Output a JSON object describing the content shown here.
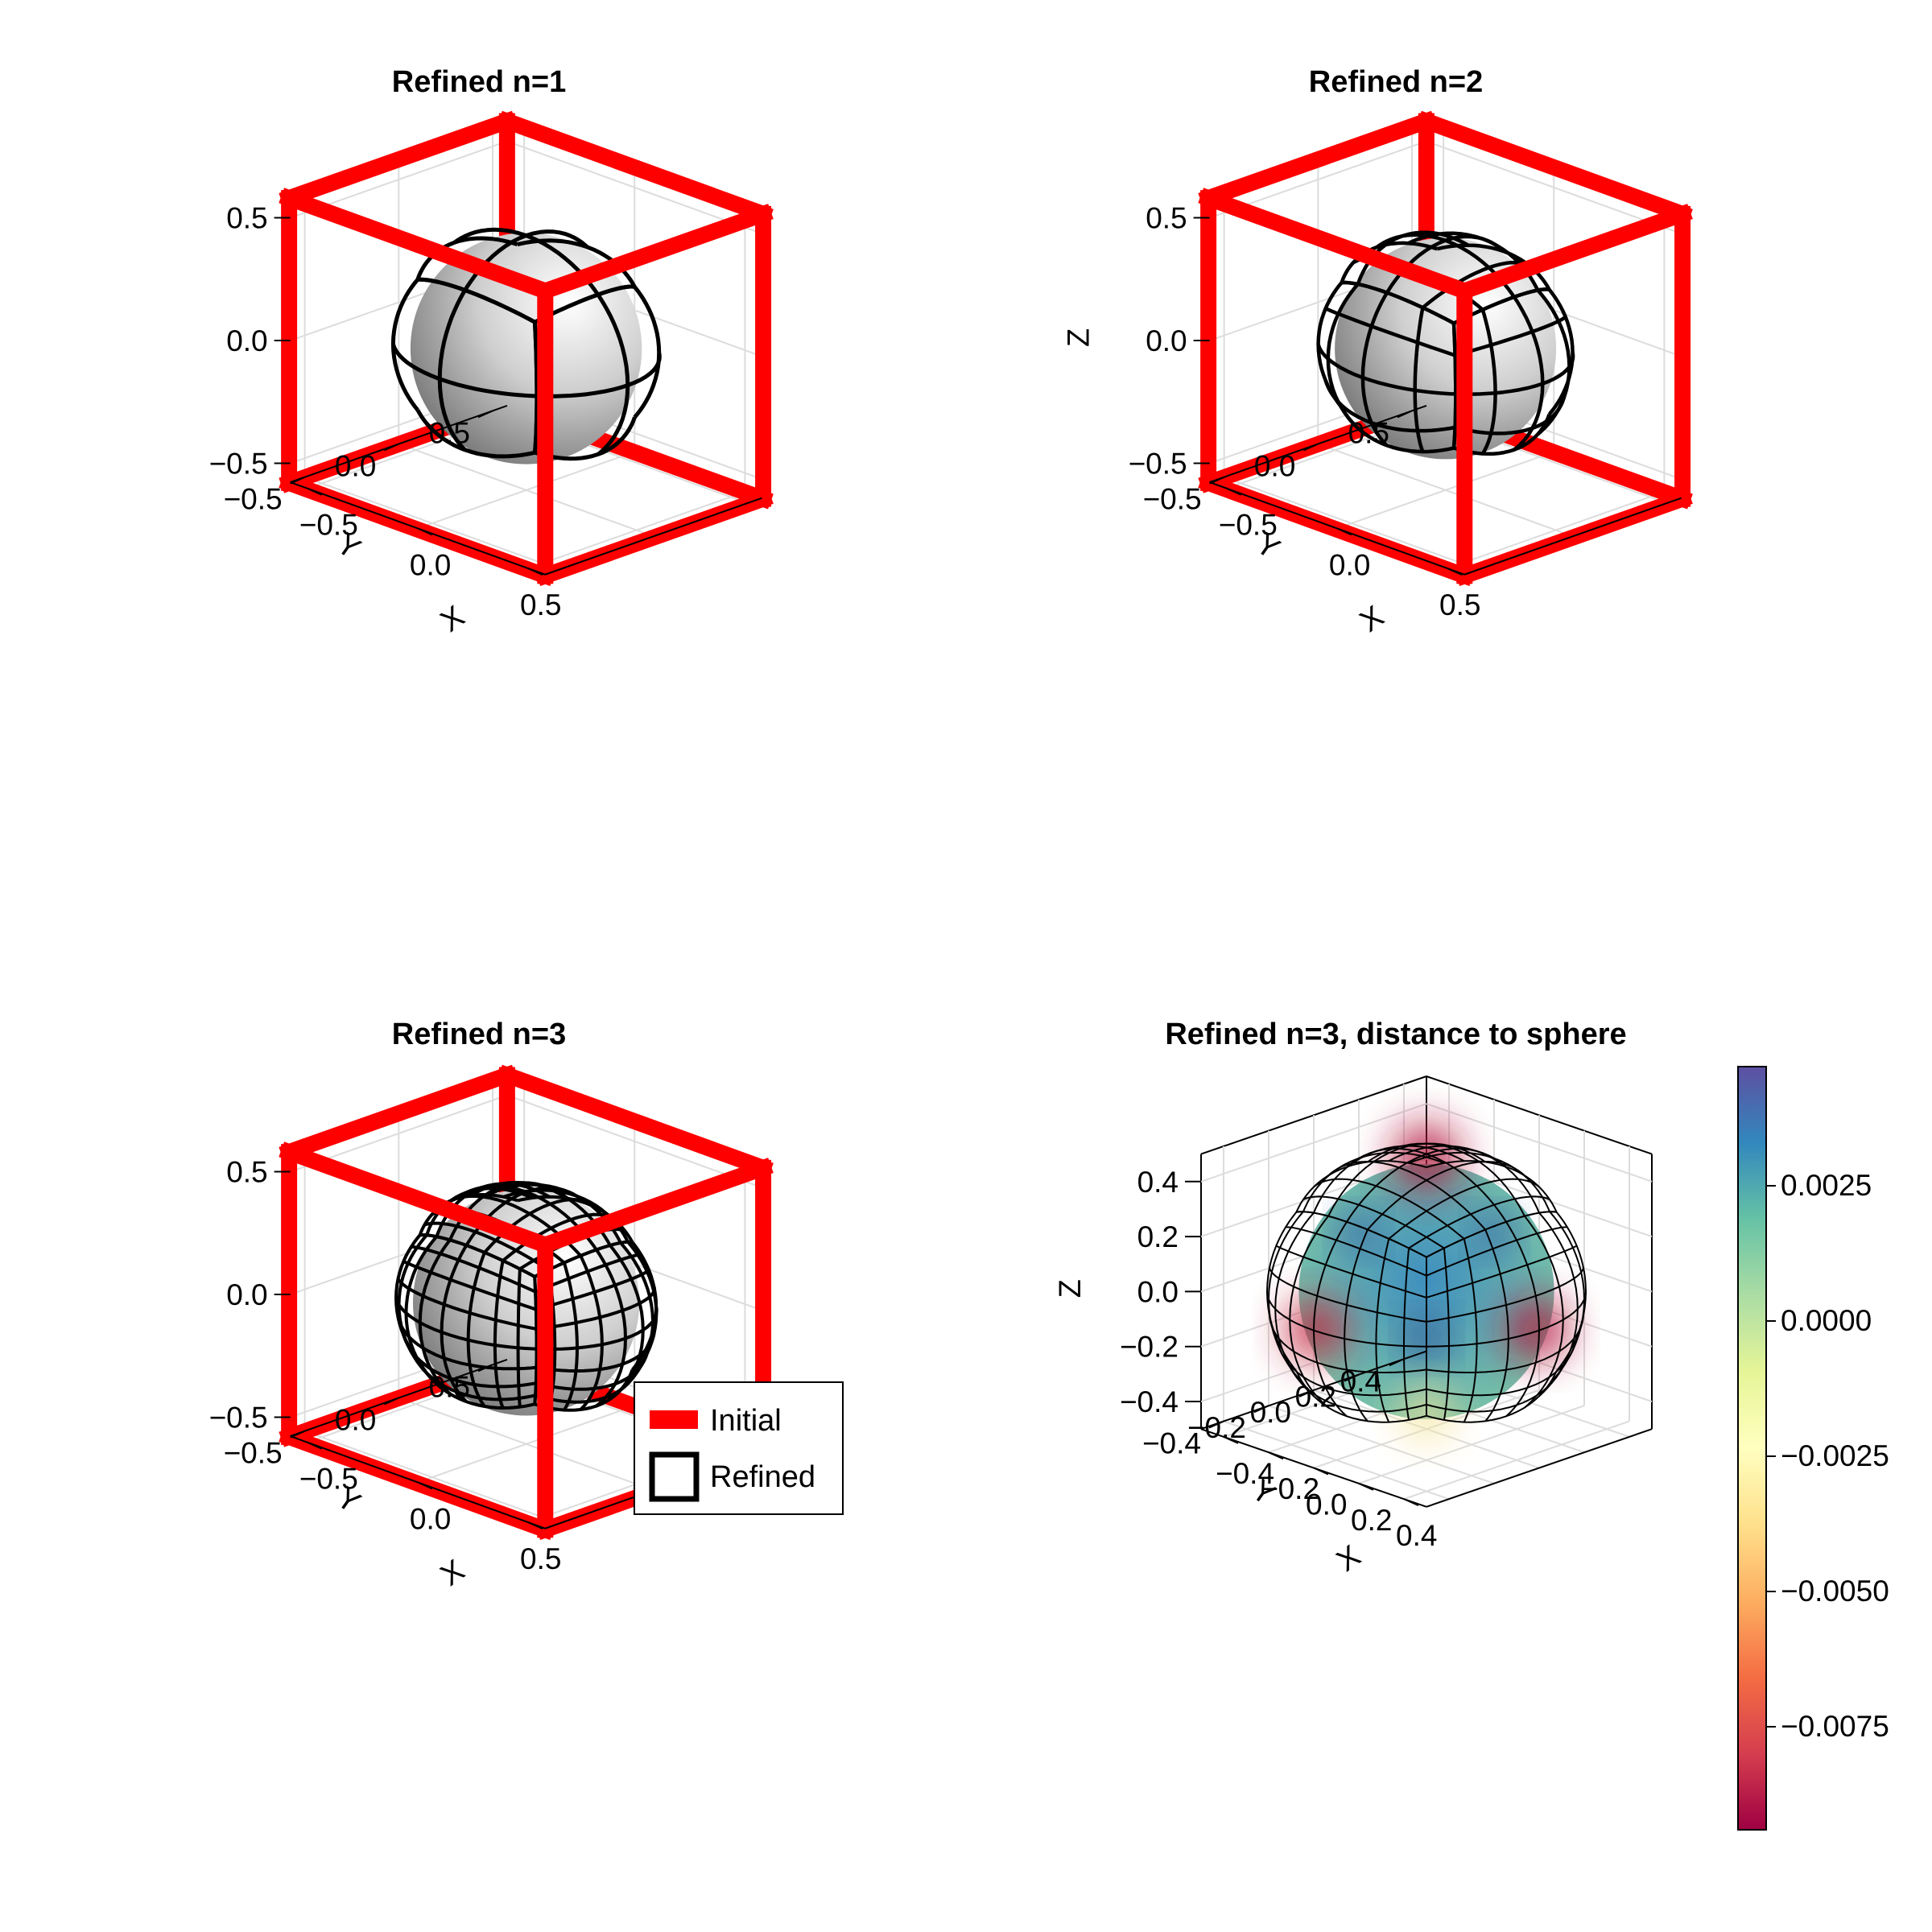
{
  "figure": {
    "layout": "2x2 grid of 3D surface plots"
  },
  "chart_data": [
    {
      "type": "surface3d",
      "title": "Refined n=1",
      "xlabel": "X",
      "ylabel": "Y",
      "zlabel": "",
      "xticks": [
        "−0.5",
        "0.0",
        "0.5"
      ],
      "yticks": [
        "−0.5",
        "0.0",
        "0.5"
      ],
      "zticks": [
        "−0.5",
        "0.0",
        "0.5"
      ],
      "xlim": [
        -0.577,
        0.577
      ],
      "ylim": [
        -0.577,
        0.577
      ],
      "zlim": [
        -0.577,
        0.577
      ],
      "series": [
        {
          "name": "Initial",
          "kind": "cube wireframe",
          "color": "#ff0000"
        },
        {
          "name": "Refined",
          "kind": "quad mesh surface",
          "refinement_level": 1,
          "color": "#c8c8c8",
          "edge_color": "#000000"
        }
      ]
    },
    {
      "type": "surface3d",
      "title": "Refined n=2",
      "xlabel": "X",
      "ylabel": "Y",
      "zlabel": "Z",
      "xticks": [
        "−0.5",
        "0.0",
        "0.5"
      ],
      "yticks": [
        "−0.5",
        "0.0",
        "0.5"
      ],
      "zticks": [
        "−0.5",
        "0.0",
        "0.5"
      ],
      "xlim": [
        -0.577,
        0.577
      ],
      "ylim": [
        -0.577,
        0.577
      ],
      "zlim": [
        -0.577,
        0.577
      ],
      "series": [
        {
          "name": "Initial",
          "kind": "cube wireframe",
          "color": "#ff0000"
        },
        {
          "name": "Refined",
          "kind": "quad mesh surface",
          "refinement_level": 2,
          "color": "#c8c8c8",
          "edge_color": "#000000"
        }
      ]
    },
    {
      "type": "surface3d",
      "title": "Refined n=3",
      "xlabel": "X",
      "ylabel": "Y",
      "zlabel": "",
      "xticks": [
        "−0.5",
        "0.0",
        "0.5"
      ],
      "yticks": [
        "−0.5",
        "0.0",
        "0.5"
      ],
      "zticks": [
        "−0.5",
        "0.0",
        "0.5"
      ],
      "xlim": [
        -0.577,
        0.577
      ],
      "ylim": [
        -0.577,
        0.577
      ],
      "zlim": [
        -0.577,
        0.577
      ],
      "legend": {
        "position": "right",
        "entries": [
          "Initial",
          "Refined"
        ]
      },
      "series": [
        {
          "name": "Initial",
          "kind": "cube wireframe",
          "color": "#ff0000"
        },
        {
          "name": "Refined",
          "kind": "quad mesh surface",
          "refinement_level": 3,
          "color": "#c8c8c8",
          "edge_color": "#000000"
        }
      ]
    },
    {
      "type": "surface3d",
      "title": "Refined n=3, distance to sphere",
      "xlabel": "X",
      "ylabel": "Y",
      "zlabel": "Z",
      "xticks": [
        "−0.4",
        "−0.2",
        "0.0",
        "0.2",
        "0.4"
      ],
      "yticks": [
        "−0.4",
        "−0.2",
        "0.0",
        "0.2",
        "0.4"
      ],
      "zticks": [
        "−0.4",
        "−0.2",
        "0.0",
        "0.2",
        "0.4"
      ],
      "xlim": [
        -0.5,
        0.5
      ],
      "ylim": [
        -0.5,
        0.5
      ],
      "zlim": [
        -0.5,
        0.5
      ],
      "colorbar": {
        "colormap": "Spectral",
        "ticks": [
          "0.0025",
          "0.0000",
          "−0.0025",
          "−0.0050",
          "−0.0075"
        ],
        "range": [
          -0.0098,
          0.0045
        ],
        "colors": [
          "#9e0142",
          "#d53e4f",
          "#f46d43",
          "#fdae61",
          "#fee08b",
          "#ffffbf",
          "#e6f598",
          "#abdda4",
          "#66c2a5",
          "#3288bd",
          "#5e4fa2"
        ]
      },
      "series": [
        {
          "name": "Refined",
          "kind": "quad mesh colored by distance to sphere",
          "refinement_level": 3
        }
      ]
    }
  ]
}
